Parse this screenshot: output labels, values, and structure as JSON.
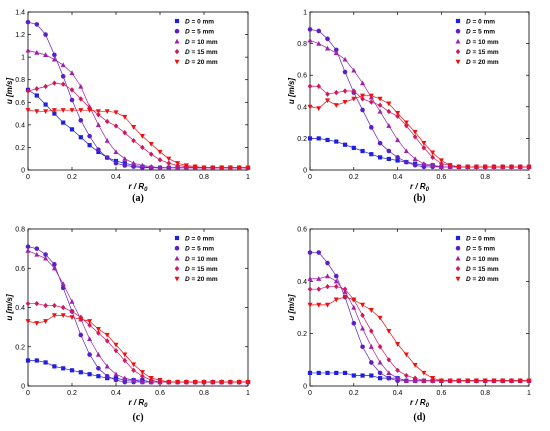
{
  "colors": {
    "D0": "#1f1fe0",
    "D5": "#5a20c8",
    "D10": "#a020a8",
    "D15": "#d01860",
    "D20": "#f01010"
  },
  "chart_data": [
    {
      "type": "line",
      "panel_label": "(a)",
      "xlabel": "r / R",
      "xlabel_sub": "0",
      "ylabel": "u [m/s]",
      "xlim": [
        0,
        1
      ],
      "ylim": [
        0,
        1.4
      ],
      "xticks": [
        "0",
        "0.2",
        "0.4",
        "0.6",
        "0.8",
        "1"
      ],
      "yticks": [
        "0",
        "0.2",
        "0.4",
        "0.6",
        "0.8",
        "1",
        "1.2",
        "1.4"
      ],
      "legend_position": "top-right",
      "x": [
        0,
        0.04,
        0.08,
        0.12,
        0.16,
        0.2,
        0.24,
        0.28,
        0.32,
        0.36,
        0.4,
        0.44,
        0.48,
        0.52,
        0.56,
        0.6,
        0.64,
        0.68,
        0.72,
        0.76,
        0.8,
        0.84,
        0.88,
        0.92,
        0.96,
        1.0
      ],
      "series": [
        {
          "prefix": "D",
          "name": " = 0 mm",
          "marker": "square",
          "color": "#1f1fe0",
          "values": [
            0.71,
            0.66,
            0.58,
            0.5,
            0.42,
            0.36,
            0.29,
            0.22,
            0.16,
            0.11,
            0.08,
            0.06,
            0.04,
            0.03,
            0.02,
            0.02,
            0.02,
            0.02,
            0.02,
            0.02,
            0.02,
            0.02,
            0.02,
            0.02,
            0.02,
            0.02
          ]
        },
        {
          "prefix": "D",
          "name": " = 5 mm",
          "marker": "circle",
          "color": "#5a20c8",
          "values": [
            1.31,
            1.29,
            1.2,
            1.02,
            0.83,
            0.62,
            0.44,
            0.3,
            0.18,
            0.11,
            0.06,
            0.04,
            0.03,
            0.02,
            0.02,
            0.02,
            0.02,
            0.02,
            0.02,
            0.02,
            0.02,
            0.02,
            0.02,
            0.02,
            0.02,
            0.02
          ]
        },
        {
          "prefix": "D",
          "name": " = 10 mm",
          "marker": "triangle-up",
          "color": "#a020a8",
          "values": [
            1.06,
            1.04,
            1.02,
            0.98,
            0.93,
            0.86,
            0.74,
            0.56,
            0.4,
            0.26,
            0.16,
            0.1,
            0.06,
            0.04,
            0.03,
            0.02,
            0.02,
            0.02,
            0.02,
            0.02,
            0.02,
            0.02,
            0.02,
            0.02,
            0.02,
            0.02
          ]
        },
        {
          "prefix": "D",
          "name": " = 15 mm",
          "marker": "diamond",
          "color": "#d01860",
          "values": [
            0.7,
            0.72,
            0.74,
            0.77,
            0.76,
            0.71,
            0.63,
            0.55,
            0.49,
            0.43,
            0.39,
            0.33,
            0.26,
            0.2,
            0.14,
            0.09,
            0.06,
            0.04,
            0.03,
            0.02,
            0.02,
            0.02,
            0.02,
            0.02,
            0.02,
            0.02
          ]
        },
        {
          "prefix": "D",
          "name": " = 20 mm",
          "marker": "triangle-down",
          "color": "#f01010",
          "values": [
            0.53,
            0.52,
            0.52,
            0.53,
            0.53,
            0.53,
            0.53,
            0.53,
            0.52,
            0.52,
            0.51,
            0.47,
            0.38,
            0.3,
            0.23,
            0.16,
            0.1,
            0.06,
            0.04,
            0.03,
            0.02,
            0.02,
            0.02,
            0.02,
            0.02,
            0.02
          ]
        }
      ]
    },
    {
      "type": "line",
      "panel_label": "(b)",
      "xlabel": "r / R",
      "xlabel_sub": "0",
      "ylabel": "u [m/s]",
      "xlim": [
        0,
        1
      ],
      "ylim": [
        0,
        1.0
      ],
      "xticks": [
        "0",
        "0.2",
        "0.4",
        "0.6",
        "0.8",
        "1"
      ],
      "yticks": [
        "0",
        "0.2",
        "0.4",
        "0.6",
        "0.8",
        "1"
      ],
      "legend_position": "top-right",
      "x": [
        0,
        0.04,
        0.08,
        0.12,
        0.16,
        0.2,
        0.24,
        0.28,
        0.32,
        0.36,
        0.4,
        0.44,
        0.48,
        0.52,
        0.56,
        0.6,
        0.64,
        0.68,
        0.72,
        0.76,
        0.8,
        0.84,
        0.88,
        0.92,
        0.96,
        1.0
      ],
      "series": [
        {
          "prefix": "D",
          "name": " = 0 mm",
          "marker": "square",
          "color": "#1f1fe0",
          "values": [
            0.2,
            0.2,
            0.19,
            0.18,
            0.16,
            0.14,
            0.12,
            0.1,
            0.08,
            0.07,
            0.06,
            0.05,
            0.04,
            0.03,
            0.03,
            0.02,
            0.02,
            0.02,
            0.02,
            0.02,
            0.02,
            0.02,
            0.02,
            0.02,
            0.02,
            0.02
          ]
        },
        {
          "prefix": "D",
          "name": " = 5 mm",
          "marker": "circle",
          "color": "#5a20c8",
          "values": [
            0.89,
            0.88,
            0.83,
            0.76,
            0.62,
            0.49,
            0.38,
            0.27,
            0.17,
            0.12,
            0.08,
            0.05,
            0.03,
            0.02,
            0.02,
            0.02,
            0.02,
            0.02,
            0.02,
            0.02,
            0.02,
            0.02,
            0.02,
            0.02,
            0.02,
            0.02
          ]
        },
        {
          "prefix": "D",
          "name": " = 10 mm",
          "marker": "triangle-up",
          "color": "#a020a8",
          "values": [
            0.82,
            0.8,
            0.77,
            0.74,
            0.7,
            0.63,
            0.55,
            0.46,
            0.37,
            0.28,
            0.19,
            0.12,
            0.07,
            0.04,
            0.03,
            0.02,
            0.02,
            0.02,
            0.02,
            0.02,
            0.02,
            0.02,
            0.02,
            0.02,
            0.02,
            0.02
          ]
        },
        {
          "prefix": "D",
          "name": " = 15 mm",
          "marker": "diamond",
          "color": "#d01860",
          "values": [
            0.53,
            0.53,
            0.48,
            0.49,
            0.5,
            0.5,
            0.45,
            0.43,
            0.41,
            0.37,
            0.34,
            0.28,
            0.21,
            0.14,
            0.08,
            0.04,
            0.03,
            0.02,
            0.02,
            0.02,
            0.02,
            0.02,
            0.02,
            0.02,
            0.02,
            0.02
          ]
        },
        {
          "prefix": "D",
          "name": " = 20 mm",
          "marker": "triangle-down",
          "color": "#f01010",
          "values": [
            0.4,
            0.39,
            0.44,
            0.41,
            0.43,
            0.45,
            0.47,
            0.47,
            0.45,
            0.42,
            0.36,
            0.3,
            0.24,
            0.17,
            0.11,
            0.06,
            0.03,
            0.02,
            0.02,
            0.02,
            0.02,
            0.02,
            0.02,
            0.02,
            0.02,
            0.02
          ]
        }
      ]
    },
    {
      "type": "line",
      "panel_label": "(c)",
      "xlabel": "r / R",
      "xlabel_sub": "0",
      "ylabel": "u [m/s]",
      "xlim": [
        0,
        1
      ],
      "ylim": [
        0,
        0.8
      ],
      "xticks": [
        "0",
        "0.2",
        "0.4",
        "0.6",
        "0.8",
        "1"
      ],
      "yticks": [
        "0",
        "0.2",
        "0.4",
        "0.6",
        "0.8"
      ],
      "legend_position": "top-right",
      "x": [
        0,
        0.04,
        0.08,
        0.12,
        0.16,
        0.2,
        0.24,
        0.28,
        0.32,
        0.36,
        0.4,
        0.44,
        0.48,
        0.52,
        0.56,
        0.6,
        0.64,
        0.68,
        0.72,
        0.76,
        0.8,
        0.84,
        0.88,
        0.92,
        0.96,
        1.0
      ],
      "series": [
        {
          "prefix": "D",
          "name": " = 0 mm",
          "marker": "square",
          "color": "#1f1fe0",
          "values": [
            0.13,
            0.13,
            0.12,
            0.1,
            0.09,
            0.08,
            0.07,
            0.06,
            0.05,
            0.04,
            0.04,
            0.03,
            0.03,
            0.03,
            0.02,
            0.02,
            0.02,
            0.02,
            0.02,
            0.02,
            0.02,
            0.02,
            0.02,
            0.02,
            0.02,
            0.02
          ]
        },
        {
          "prefix": "D",
          "name": " = 5 mm",
          "marker": "circle",
          "color": "#5a20c8",
          "values": [
            0.71,
            0.7,
            0.67,
            0.62,
            0.5,
            0.38,
            0.26,
            0.16,
            0.09,
            0.05,
            0.03,
            0.02,
            0.02,
            0.02,
            0.02,
            0.02,
            0.02,
            0.02,
            0.02,
            0.02,
            0.02,
            0.02,
            0.02,
            0.02,
            0.02,
            0.02
          ]
        },
        {
          "prefix": "D",
          "name": " = 10 mm",
          "marker": "triangle-up",
          "color": "#a020a8",
          "values": [
            0.69,
            0.67,
            0.65,
            0.6,
            0.52,
            0.43,
            0.34,
            0.24,
            0.16,
            0.1,
            0.06,
            0.04,
            0.03,
            0.02,
            0.02,
            0.02,
            0.02,
            0.02,
            0.02,
            0.02,
            0.02,
            0.02,
            0.02,
            0.02,
            0.02,
            0.02
          ]
        },
        {
          "prefix": "D",
          "name": " = 15 mm",
          "marker": "diamond",
          "color": "#d01860",
          "values": [
            0.42,
            0.42,
            0.41,
            0.41,
            0.4,
            0.38,
            0.35,
            0.31,
            0.27,
            0.23,
            0.18,
            0.13,
            0.08,
            0.05,
            0.03,
            0.02,
            0.02,
            0.02,
            0.02,
            0.02,
            0.02,
            0.02,
            0.02,
            0.02,
            0.02,
            0.02
          ]
        },
        {
          "prefix": "D",
          "name": " = 20 mm",
          "marker": "triangle-down",
          "color": "#f01010",
          "values": [
            0.33,
            0.32,
            0.33,
            0.36,
            0.36,
            0.35,
            0.34,
            0.33,
            0.29,
            0.26,
            0.21,
            0.16,
            0.11,
            0.07,
            0.04,
            0.03,
            0.02,
            0.02,
            0.02,
            0.02,
            0.02,
            0.02,
            0.02,
            0.02,
            0.02,
            0.02
          ]
        }
      ]
    },
    {
      "type": "line",
      "panel_label": "(d)",
      "xlabel": "r / R",
      "xlabel_sub": "0",
      "ylabel": "u [m/s]",
      "xlim": [
        0,
        1
      ],
      "ylim": [
        0,
        0.6
      ],
      "xticks": [
        "0",
        "0.2",
        "0.4",
        "0.6",
        "0.8",
        "1"
      ],
      "yticks": [
        "0",
        "0.2",
        "0.4",
        "0.6"
      ],
      "legend_position": "top-right",
      "x": [
        0,
        0.04,
        0.08,
        0.12,
        0.16,
        0.2,
        0.24,
        0.28,
        0.32,
        0.36,
        0.4,
        0.44,
        0.48,
        0.52,
        0.56,
        0.6,
        0.64,
        0.68,
        0.72,
        0.76,
        0.8,
        0.84,
        0.88,
        0.92,
        0.96,
        1.0
      ],
      "series": [
        {
          "prefix": "D",
          "name": " = 0 mm",
          "marker": "square",
          "color": "#1f1fe0",
          "values": [
            0.05,
            0.05,
            0.05,
            0.05,
            0.05,
            0.04,
            0.04,
            0.04,
            0.03,
            0.03,
            0.03,
            0.02,
            0.02,
            0.02,
            0.02,
            0.02,
            0.02,
            0.02,
            0.02,
            0.02,
            0.02,
            0.02,
            0.02,
            0.02,
            0.02,
            0.02
          ]
        },
        {
          "prefix": "D",
          "name": " = 5 mm",
          "marker": "circle",
          "color": "#5a20c8",
          "values": [
            0.51,
            0.51,
            0.47,
            0.42,
            0.34,
            0.24,
            0.15,
            0.09,
            0.05,
            0.03,
            0.02,
            0.02,
            0.02,
            0.02,
            0.02,
            0.02,
            0.02,
            0.02,
            0.02,
            0.02,
            0.02,
            0.02,
            0.02,
            0.02,
            0.02,
            0.02
          ]
        },
        {
          "prefix": "D",
          "name": " = 10 mm",
          "marker": "triangle-up",
          "color": "#a020a8",
          "values": [
            0.41,
            0.41,
            0.42,
            0.4,
            0.36,
            0.3,
            0.22,
            0.15,
            0.09,
            0.05,
            0.03,
            0.02,
            0.02,
            0.02,
            0.02,
            0.02,
            0.02,
            0.02,
            0.02,
            0.02,
            0.02,
            0.02,
            0.02,
            0.02,
            0.02,
            0.02
          ]
        },
        {
          "prefix": "D",
          "name": " = 15 mm",
          "marker": "diamond",
          "color": "#d01860",
          "values": [
            0.37,
            0.37,
            0.38,
            0.38,
            0.37,
            0.33,
            0.27,
            0.21,
            0.15,
            0.1,
            0.06,
            0.04,
            0.03,
            0.02,
            0.02,
            0.02,
            0.02,
            0.02,
            0.02,
            0.02,
            0.02,
            0.02,
            0.02,
            0.02,
            0.02,
            0.02
          ]
        },
        {
          "prefix": "D",
          "name": " = 20 mm",
          "marker": "triangle-down",
          "color": "#f01010",
          "values": [
            0.31,
            0.31,
            0.31,
            0.33,
            0.34,
            0.33,
            0.31,
            0.29,
            0.26,
            0.21,
            0.16,
            0.12,
            0.08,
            0.05,
            0.03,
            0.02,
            0.02,
            0.02,
            0.02,
            0.02,
            0.02,
            0.02,
            0.02,
            0.02,
            0.02,
            0.02
          ]
        }
      ]
    }
  ]
}
